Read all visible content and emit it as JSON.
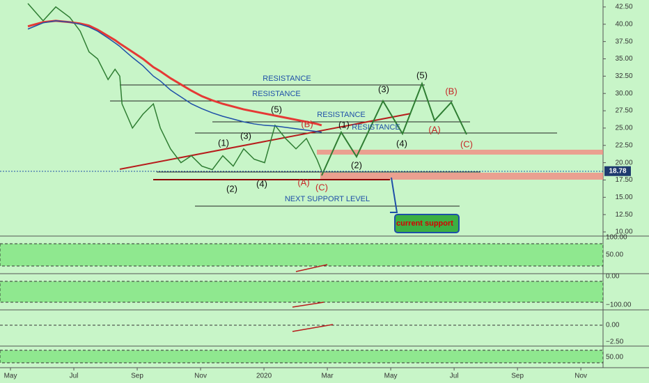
{
  "chart_data": {
    "type": "line",
    "x": [
      0.55,
      1.03,
      1.43,
      1.87,
      2.2,
      2.48,
      2.75,
      3.08,
      3.3,
      3.45,
      3.52,
      3.85,
      4.18,
      4.51,
      4.73,
      5.05,
      5.38,
      5.71,
      6.04,
      6.37,
      6.7,
      7.03,
      7.36,
      7.69,
      8.02,
      8.35,
      8.68,
      9.01,
      9.34,
      9.67,
      9.82
    ],
    "series": [
      {
        "color": "#2e7d32",
        "values": [
          43,
          40.5,
          42.5,
          41,
          39,
          36,
          35,
          32,
          33.5,
          32.5,
          28.5,
          25,
          27,
          28.5,
          25,
          22,
          20,
          21,
          19.5,
          19,
          21,
          19.5,
          22,
          20.5,
          20,
          25.4,
          23.5,
          22,
          23.5,
          20.5,
          18.8
        ]
      },
      {
        "color": "#e53935",
        "values": [
          39.7,
          40.3,
          40.5,
          40.3,
          40.1,
          39.8,
          39.2,
          38.3,
          37.7,
          37.2,
          37,
          36,
          35,
          33.8,
          33.2,
          32.2,
          31.3,
          30.4,
          29.6,
          29,
          28.5,
          28.1,
          27.7,
          27.4,
          27.1,
          26.8,
          26.5,
          26.2,
          25.9,
          25.6,
          25.4
        ]
      },
      {
        "color": "#1e4fa8",
        "values": [
          39.3,
          40.2,
          40.5,
          40.3,
          40,
          39.6,
          39,
          38,
          37.3,
          36.8,
          36.5,
          35.2,
          34,
          32.5,
          31.8,
          30.5,
          29.5,
          28.5,
          27.8,
          27.2,
          26.7,
          26.3,
          25.9,
          25.6,
          25.4,
          25.3,
          25.1,
          24.9,
          24.7,
          24.5,
          24.4
        ]
      }
    ],
    "xlim": [
      -0.33,
      18.7
    ],
    "xticks": [
      {
        "value": 0,
        "label": "May"
      },
      {
        "value": 2,
        "label": "Jul"
      },
      {
        "value": 4,
        "label": "Sep"
      },
      {
        "value": 6,
        "label": "Nov"
      },
      {
        "value": 8,
        "label": "2020"
      },
      {
        "value": 10,
        "label": "Mar"
      },
      {
        "value": 12,
        "label": "May"
      },
      {
        "value": 14,
        "label": "Jul"
      },
      {
        "value": 16,
        "label": "Sep"
      },
      {
        "value": 18,
        "label": "Nov"
      }
    ],
    "ylim": [
      9.5,
      43.5
    ],
    "yticks": [
      {
        "value": 10,
        "label": "10.00"
      },
      {
        "value": 12.5,
        "label": "12.50"
      },
      {
        "value": 15,
        "label": "15.00"
      },
      {
        "value": 17.5,
        "label": "17.50"
      },
      {
        "value": 20,
        "label": "20.00"
      },
      {
        "value": 22.5,
        "label": "22.50"
      },
      {
        "value": 25,
        "label": "25.00"
      },
      {
        "value": 27.5,
        "label": "27.50"
      },
      {
        "value": 30,
        "label": "30.00"
      },
      {
        "value": 32.5,
        "label": "32.50"
      },
      {
        "value": 35,
        "label": "35.00"
      },
      {
        "value": 37.5,
        "label": "37.50"
      },
      {
        "value": 40,
        "label": "40.00"
      },
      {
        "value": 42.5,
        "label": "42.50"
      }
    ],
    "last_price": 18.78,
    "annotations": [
      "RESISTANCE",
      "RESISTANCE",
      "RESISTANCE",
      "RESISTANCE",
      "NEXT SUPPORT LEVEL",
      "(1)",
      "(2)",
      "(3)",
      "(4)",
      "(5)",
      "(A)",
      "(B)",
      "(C)",
      "(1)",
      "(2)",
      "(3)",
      "(4)",
      "(5)",
      "(A)",
      "(B)",
      "(C)",
      "current support"
    ],
    "pane_ticks": [
      "100.00",
      "50.00",
      "0.00",
      "−100.00",
      "0.00",
      "−2.50",
      "50.00"
    ]
  }
}
